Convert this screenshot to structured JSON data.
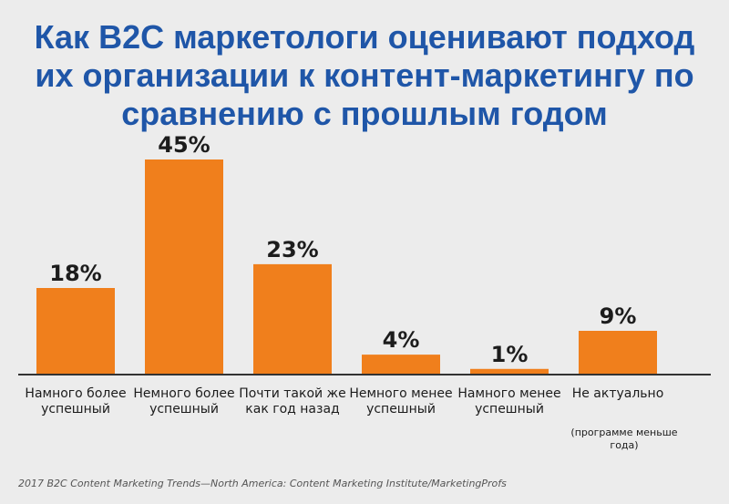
{
  "chart_data": {
    "type": "bar",
    "title": "Как B2C маркетологи оценивают подход их организации к контент-маркетингу по сравнению с прошлым годом",
    "categories": [
      "Намного более успешный",
      "Немного более успешный",
      "Почти такой же как год назад",
      "Немного менее успешный",
      "Намного менее успешный",
      "Не актуально"
    ],
    "values": [
      18,
      45,
      23,
      4,
      1,
      9
    ],
    "value_labels": [
      "18%",
      "45%",
      "23%",
      "4%",
      "1%",
      "9%"
    ],
    "ylim": [
      0,
      45
    ],
    "note": "(программе меньше года)",
    "bar_color": "#f07f1c",
    "axis_color": "#333333"
  },
  "source": "2017 B2C Content Marketing Trends—North America: Content Marketing Institute/MarketingProfs"
}
